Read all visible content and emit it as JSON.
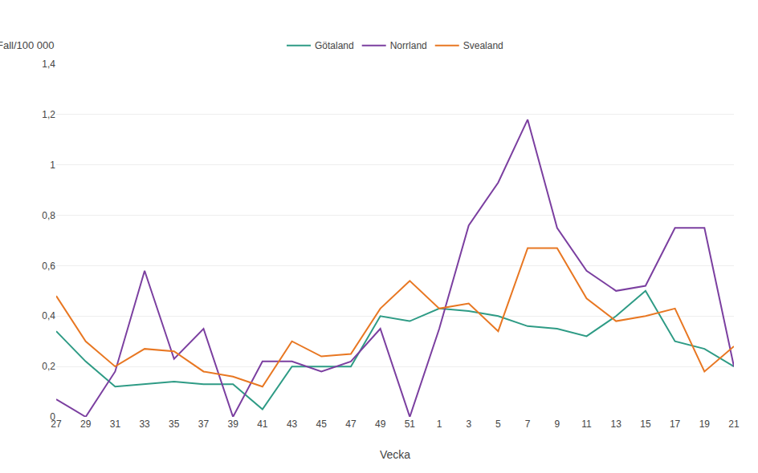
{
  "chart_data": {
    "type": "line",
    "xlabel": "Vecka",
    "ylabel": "Fall/100 000",
    "categories": [
      "27",
      "29",
      "31",
      "33",
      "35",
      "37",
      "39",
      "41",
      "43",
      "45",
      "47",
      "49",
      "51",
      "1",
      "3",
      "5",
      "7",
      "9",
      "11",
      "13",
      "15",
      "17",
      "19",
      "21"
    ],
    "series": [
      {
        "name": "Götaland",
        "color": "#2E9B85",
        "values": [
          0.34,
          0.22,
          0.12,
          0.13,
          0.14,
          0.13,
          0.13,
          0.03,
          0.2,
          0.2,
          0.2,
          0.4,
          0.38,
          0.43,
          0.42,
          0.4,
          0.36,
          0.35,
          0.32,
          0.4,
          0.5,
          0.3,
          0.27,
          0.2
        ]
      },
      {
        "name": "Norrland",
        "color": "#7B3FA0",
        "values": [
          0.07,
          0.0,
          0.18,
          0.58,
          0.23,
          0.35,
          0.0,
          0.22,
          0.22,
          0.18,
          0.22,
          0.35,
          0.0,
          0.35,
          0.76,
          0.93,
          1.18,
          0.75,
          0.58,
          0.5,
          0.52,
          0.75,
          0.75,
          0.2
        ]
      },
      {
        "name": "Svealand",
        "color": "#E87722",
        "values": [
          0.48,
          0.3,
          0.2,
          0.27,
          0.26,
          0.18,
          0.16,
          0.12,
          0.3,
          0.24,
          0.25,
          0.43,
          0.54,
          0.43,
          0.45,
          0.34,
          0.67,
          0.67,
          0.47,
          0.38,
          0.4,
          0.43,
          0.18,
          0.28
        ]
      }
    ],
    "ylim": [
      0,
      1.4
    ],
    "yticks": [
      0,
      {
        "value": 0.2,
        "label": "0,2"
      },
      {
        "value": 0.4,
        "label": "0,4"
      },
      {
        "value": 0.6,
        "label": "0,6"
      },
      {
        "value": 0.8,
        "label": "0,8"
      },
      1,
      {
        "value": 1.2,
        "label": "1,2"
      },
      {
        "value": 1.4,
        "label": "1,4"
      }
    ],
    "grid": true,
    "legend": "top"
  }
}
